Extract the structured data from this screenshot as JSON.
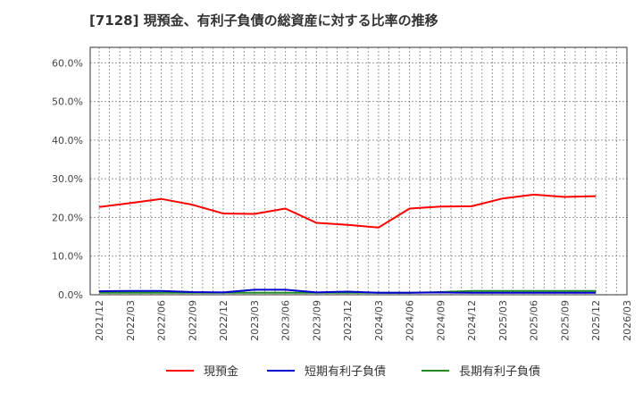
{
  "title": "[7128]  現預金、有利子負債の総資産に対する比率の推移",
  "colors": {
    "cash": "#ff0000",
    "short_debt": "#0000cc",
    "long_debt": "#228b22",
    "grid": "#999999",
    "axis": "#333333"
  },
  "legend": [
    {
      "label": "現預金",
      "color": "#ff0000"
    },
    {
      "label": "短期有利子負債",
      "color": "#0000cc"
    },
    {
      "label": "長期有利子負債",
      "color": "#228b22"
    }
  ],
  "chart_data": {
    "type": "line",
    "title": "[7128]  現預金、有利子負債の総資産に対する比率の推移",
    "xlabel": "",
    "ylabel": "",
    "ylim": [
      0,
      0.64
    ],
    "yticks": [
      0,
      0.1,
      0.2,
      0.3,
      0.4,
      0.5,
      0.6
    ],
    "ytick_labels": [
      "0.0%",
      "10.0%",
      "20.0%",
      "30.0%",
      "40.0%",
      "50.0%",
      "60.0%"
    ],
    "xtick_labels": [
      "2021/12",
      "2022/03",
      "2022/06",
      "2022/09",
      "2022/12",
      "2023/03",
      "2023/06",
      "2023/09",
      "2023/12",
      "2024/03",
      "2024/06",
      "2024/09",
      "2024/12",
      "2025/03",
      "2025/06",
      "2025/09",
      "2025/12",
      "2026/03"
    ],
    "grid": true,
    "legend_position": "bottom",
    "x": [
      "2021/12",
      "2022/03",
      "2022/06",
      "2022/09",
      "2022/12",
      "2023/03",
      "2023/06",
      "2023/09",
      "2023/12",
      "2024/03",
      "2024/06",
      "2024/09",
      "2024/12",
      "2025/03",
      "2025/06",
      "2025/09",
      "2025/12"
    ],
    "series": [
      {
        "name": "現預金",
        "color": "#ff0000",
        "values": [
          22.7,
          23.7,
          24.8,
          23.3,
          21.0,
          20.9,
          22.3,
          18.6,
          18.1,
          17.4,
          22.3,
          22.8,
          22.9,
          24.9,
          25.9,
          25.3,
          25.5
        ]
      },
      {
        "name": "短期有利子負債",
        "color": "#0000cc",
        "values": [
          0.9,
          1.0,
          1.0,
          0.7,
          0.6,
          1.3,
          1.3,
          0.6,
          0.8,
          0.5,
          0.5,
          0.6,
          0.5,
          0.5,
          0.5,
          0.5,
          0.5
        ]
      },
      {
        "name": "長期有利子負債",
        "color": "#228b22",
        "values": [
          0.5,
          0.5,
          0.5,
          0.5,
          0.5,
          0.5,
          0.5,
          0.5,
          0.5,
          0.5,
          0.5,
          0.7,
          1.0,
          1.0,
          1.0,
          1.0,
          1.0
        ]
      }
    ]
  }
}
